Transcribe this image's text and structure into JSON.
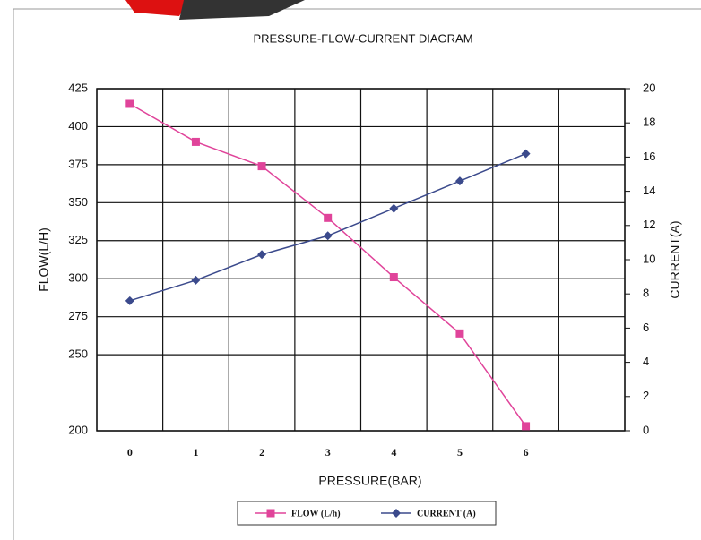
{
  "chart_data": {
    "type": "line",
    "title": "PRESSURE-FLOW-CURRENT DIAGRAM",
    "x_label": "PRESSURE(BAR)",
    "y_label": "FLOW(L/H)",
    "y2_label": "CURRENT(A)",
    "categories": [
      "0",
      "1",
      "2",
      "3",
      "4",
      "5",
      "6",
      null
    ],
    "series": [
      {
        "name": "FLOW (L/h)",
        "color": "#e0449a",
        "marker": "square",
        "values": [
          415,
          390,
          374,
          340,
          301,
          264,
          203,
          null
        ]
      },
      {
        "name": "CURRENT (A)",
        "color": "#3b4a8c",
        "marker": "diamond",
        "axis": "y2",
        "values": [
          7.6,
          8.8,
          10.3,
          11.4,
          13.0,
          14.6,
          16.2,
          null
        ]
      }
    ],
    "ylim": [
      200,
      425
    ],
    "yticks": [
      200,
      250,
      275,
      300,
      325,
      350,
      375,
      400,
      425
    ],
    "y2lim": [
      0,
      20
    ],
    "y2ticks": [
      0,
      2,
      4,
      6,
      8,
      10,
      12,
      14,
      16,
      18,
      20
    ],
    "grid": true,
    "legend": "bottom"
  }
}
